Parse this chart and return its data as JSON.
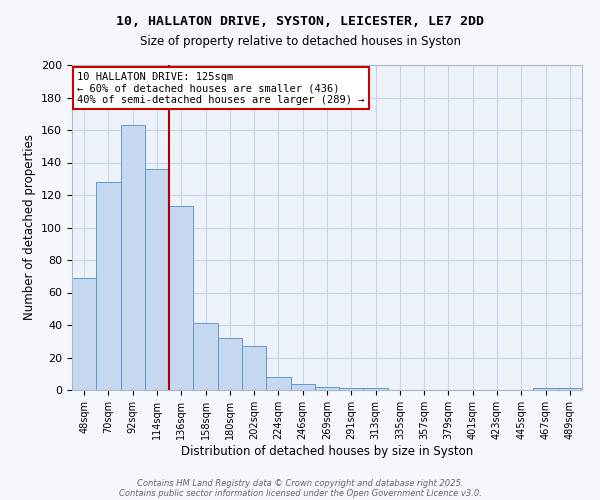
{
  "title_line1": "10, HALLATON DRIVE, SYSTON, LEICESTER, LE7 2DD",
  "title_line2": "Size of property relative to detached houses in Syston",
  "xlabel": "Distribution of detached houses by size in Syston",
  "ylabel": "Number of detached properties",
  "bar_labels": [
    "48sqm",
    "70sqm",
    "92sqm",
    "114sqm",
    "136sqm",
    "158sqm",
    "180sqm",
    "202sqm",
    "224sqm",
    "246sqm",
    "269sqm",
    "291sqm",
    "313sqm",
    "335sqm",
    "357sqm",
    "379sqm",
    "401sqm",
    "423sqm",
    "445sqm",
    "467sqm",
    "489sqm"
  ],
  "bar_values": [
    69,
    128,
    163,
    136,
    113,
    41,
    32,
    27,
    8,
    4,
    2,
    1,
    1,
    0,
    0,
    0,
    0,
    0,
    0,
    1,
    1
  ],
  "bar_color": "#c5d8ef",
  "bar_edge_color": "#5b9bd5",
  "grid_color": "#c8d4e8",
  "annotation_text": "10 HALLATON DRIVE: 125sqm\n← 60% of detached houses are smaller (436)\n40% of semi-detached houses are larger (289) →",
  "vline_color": "#aa0000",
  "box_color": "#cc0000",
  "footer_line1": "Contains HM Land Registry data © Crown copyright and database right 2025.",
  "footer_line2": "Contains public sector information licensed under the Open Government Licence v3.0.",
  "ylim": [
    0,
    200
  ],
  "yticks": [
    0,
    20,
    40,
    60,
    80,
    100,
    120,
    140,
    160,
    180,
    200
  ],
  "bg_color": "#f4f7fc",
  "plot_bg_color": "#edf2fa"
}
